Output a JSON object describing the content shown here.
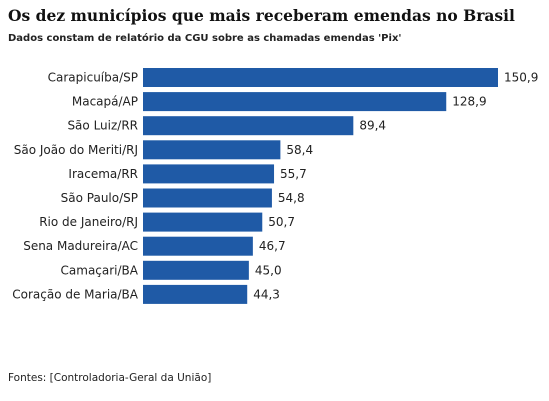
{
  "chart_data": {
    "type": "bar",
    "orientation": "horizontal",
    "title": "Os dez municípios que mais receberam emendas no Brasil",
    "subtitle": "Dados constam de relatório da CGU sobre as chamadas emendas 'Pix'",
    "categories": [
      "Carapicuíba/SP",
      "Macapá/AP",
      "São Luiz/RR",
      "São João do Meriti/RJ",
      "Iracema/RR",
      "São Paulo/SP",
      "Rio de Janeiro/RJ",
      "Sena Madureira/AC",
      "Camaçari/BA",
      "Coração de Maria/BA"
    ],
    "values": [
      150.9,
      128.9,
      89.4,
      58.4,
      55.7,
      54.8,
      50.7,
      46.7,
      45.0,
      44.3
    ],
    "value_labels": [
      "150,9",
      "128,9",
      "89,4",
      "58,4",
      "55,7",
      "54,8",
      "50,7",
      "46,7",
      "45,0",
      "44,3"
    ],
    "bar_color": "#1f5aa6",
    "grid": false,
    "legend": "none",
    "source": "Fontes: [Controladoria-Geral da União]"
  }
}
